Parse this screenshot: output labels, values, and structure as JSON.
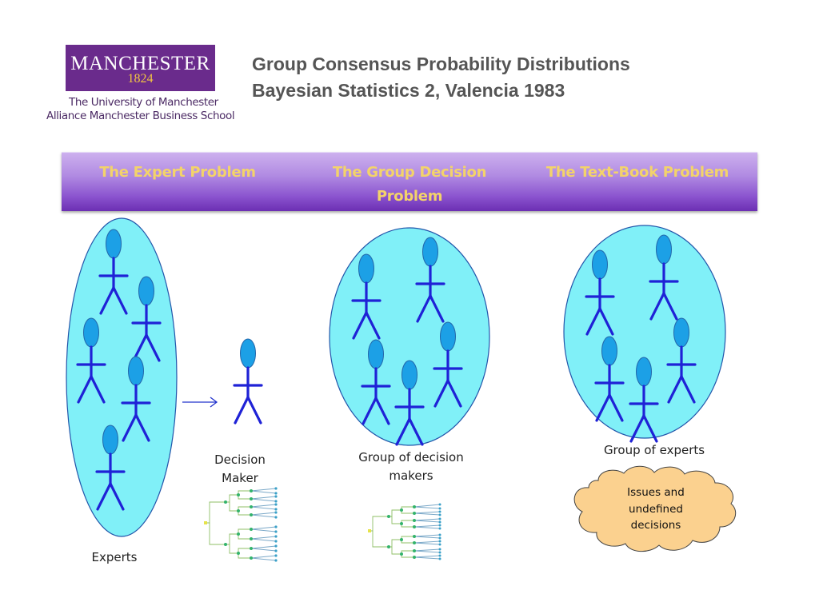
{
  "logo": {
    "wordmark": "MANCHESTER",
    "year": "1824",
    "university": "The University of Manchester",
    "school": "Alliance Manchester Business School"
  },
  "title": {
    "line1": "Group Consensus Probability Distributions",
    "line2": "Bayesian Statistics 2, Valencia 1983"
  },
  "banner": {
    "expert": "The Expert Problem",
    "group_decision_line1": "The Group Decision",
    "group_decision_line2": "Problem",
    "textbook": "The Text-Book Problem"
  },
  "labels": {
    "experts": "Experts",
    "decision_maker_line1": "Decision",
    "decision_maker_line2": "Maker",
    "group_of_decision_makers_line1": "Group of decision",
    "group_of_decision_makers_line2": "makers",
    "group_of_experts": "Group of experts",
    "cloud_line1": "Issues and",
    "cloud_line2": "undefined",
    "cloud_line3": "decisions"
  },
  "colors": {
    "ellipse_fill": "#80f0f8",
    "figure_head": "#1ca0e6",
    "figure_body": "#1f22d6",
    "cloud_fill": "#fbd18f",
    "banner_text": "#f3d36a",
    "logo_purple": "#6a2b8c",
    "logo_gold": "#f3c641"
  },
  "icons": [
    "stick-figure-icon",
    "arrow-icon",
    "decision-tree-icon",
    "cloud-icon"
  ]
}
